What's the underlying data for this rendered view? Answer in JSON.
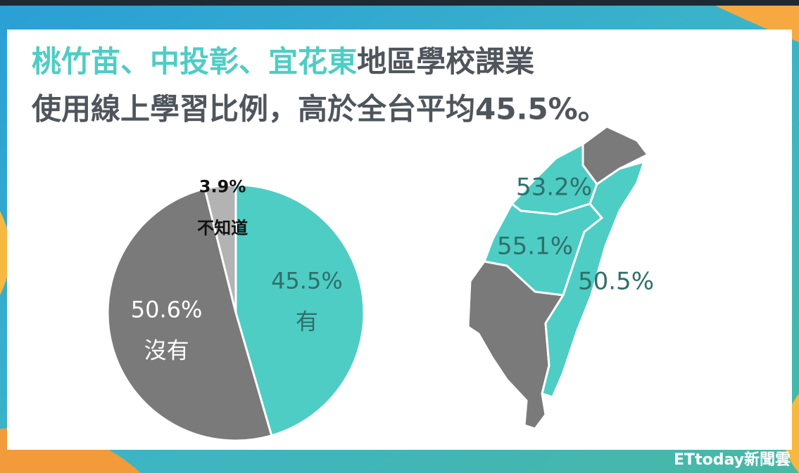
{
  "title_segments": [
    {
      "text": "桃竹苗",
      "color": "#4ecdc4"
    },
    {
      "text": "、",
      "color": "#4ecdc4"
    },
    {
      "text": "中投彰",
      "color": "#4ecdc4"
    },
    {
      "text": "、",
      "color": "#4ecdc4"
    },
    {
      "text": "宜花東",
      "color": "#4ecdc4"
    },
    {
      "text": "地區學校課業",
      "color": "#4f555c"
    }
  ],
  "subtitle": "使用線上學習比例，高於全台平均45.5%。",
  "watermark": "ETtoday新聞雲",
  "chart_data": [
    {
      "type": "pie",
      "categories": [
        "有",
        "沒有",
        "不知道"
      ],
      "values": [
        45.5,
        50.6,
        3.9
      ],
      "value_labels": [
        "45.5%",
        "50.6%",
        "3.9%"
      ],
      "colors": [
        "#4ecdc4",
        "#7a7a7a",
        "#b3b3b3"
      ],
      "label_colors": [
        "#2f6f6a",
        "#ffffff",
        "#111111"
      ]
    },
    {
      "type": "map",
      "values": [
        53.2,
        55.1,
        50.5
      ],
      "value_labels": [
        "53.2%",
        "55.1%",
        "50.5%"
      ],
      "color": "#4ecdc4",
      "label_color": "#2f6f6a"
    }
  ]
}
